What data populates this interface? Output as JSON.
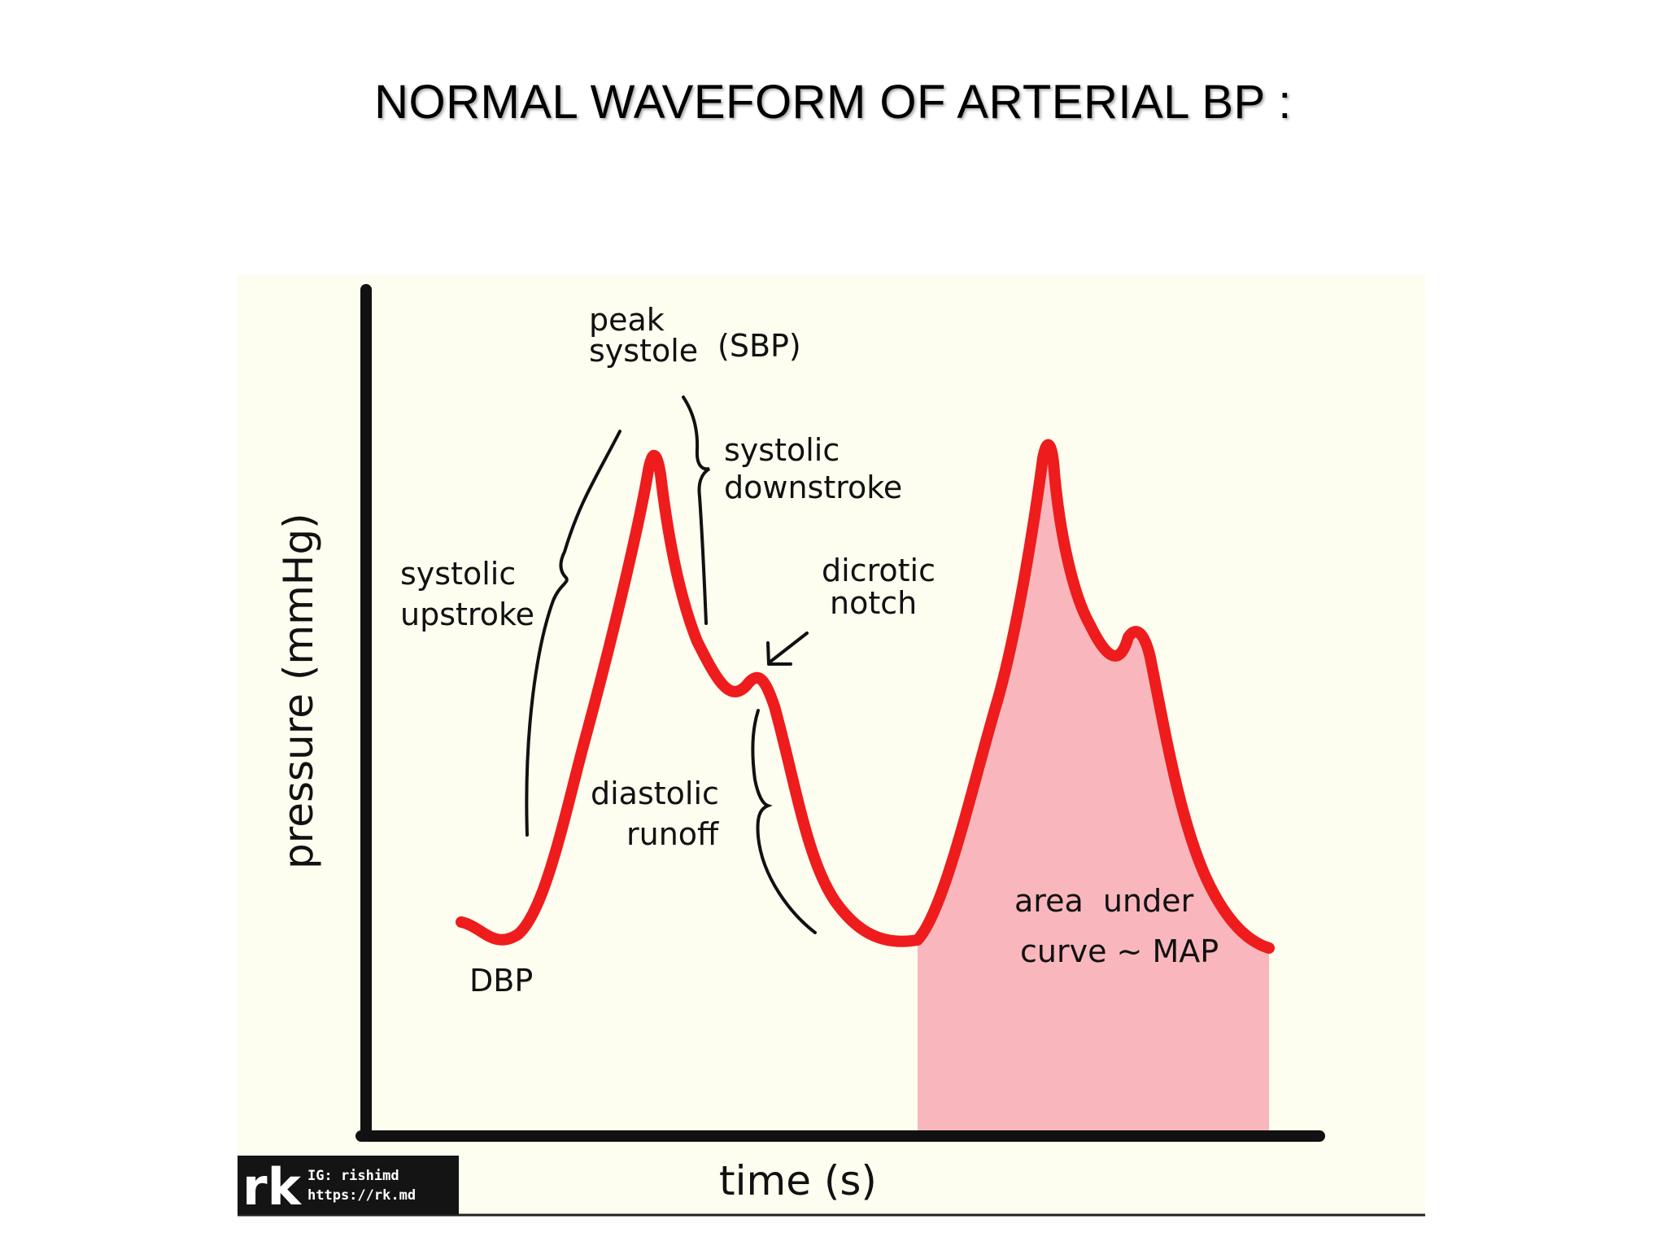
{
  "title": "NORMAL WAVEFORM OF ARTERIAL BP :",
  "diagram": {
    "y_axis_label": "pressure (mmHg)",
    "x_axis_label": "time (s)",
    "annotations": {
      "peak_systole": [
        "peak",
        "systole"
      ],
      "sbp": "(SBP)",
      "systolic_downstroke": [
        "systolic",
        "downstroke"
      ],
      "systolic_upstroke": [
        "systolic",
        "upstroke"
      ],
      "dicrotic_notch": [
        "dicrotic",
        "notch"
      ],
      "diastolic_runoff": [
        "diastolic",
        "runoff"
      ],
      "dbp": "DBP",
      "area_under_curve": [
        "area  under",
        "curve ~ MAP"
      ]
    },
    "logo": {
      "mark": "rk",
      "line1": "IG: rishimd",
      "line2": "https://rk.md"
    },
    "colors": {
      "background": "#fdfdf0",
      "waveform": "#ee1c1c",
      "area_fill": "#f9b7bd",
      "axis": "#111111"
    }
  }
}
